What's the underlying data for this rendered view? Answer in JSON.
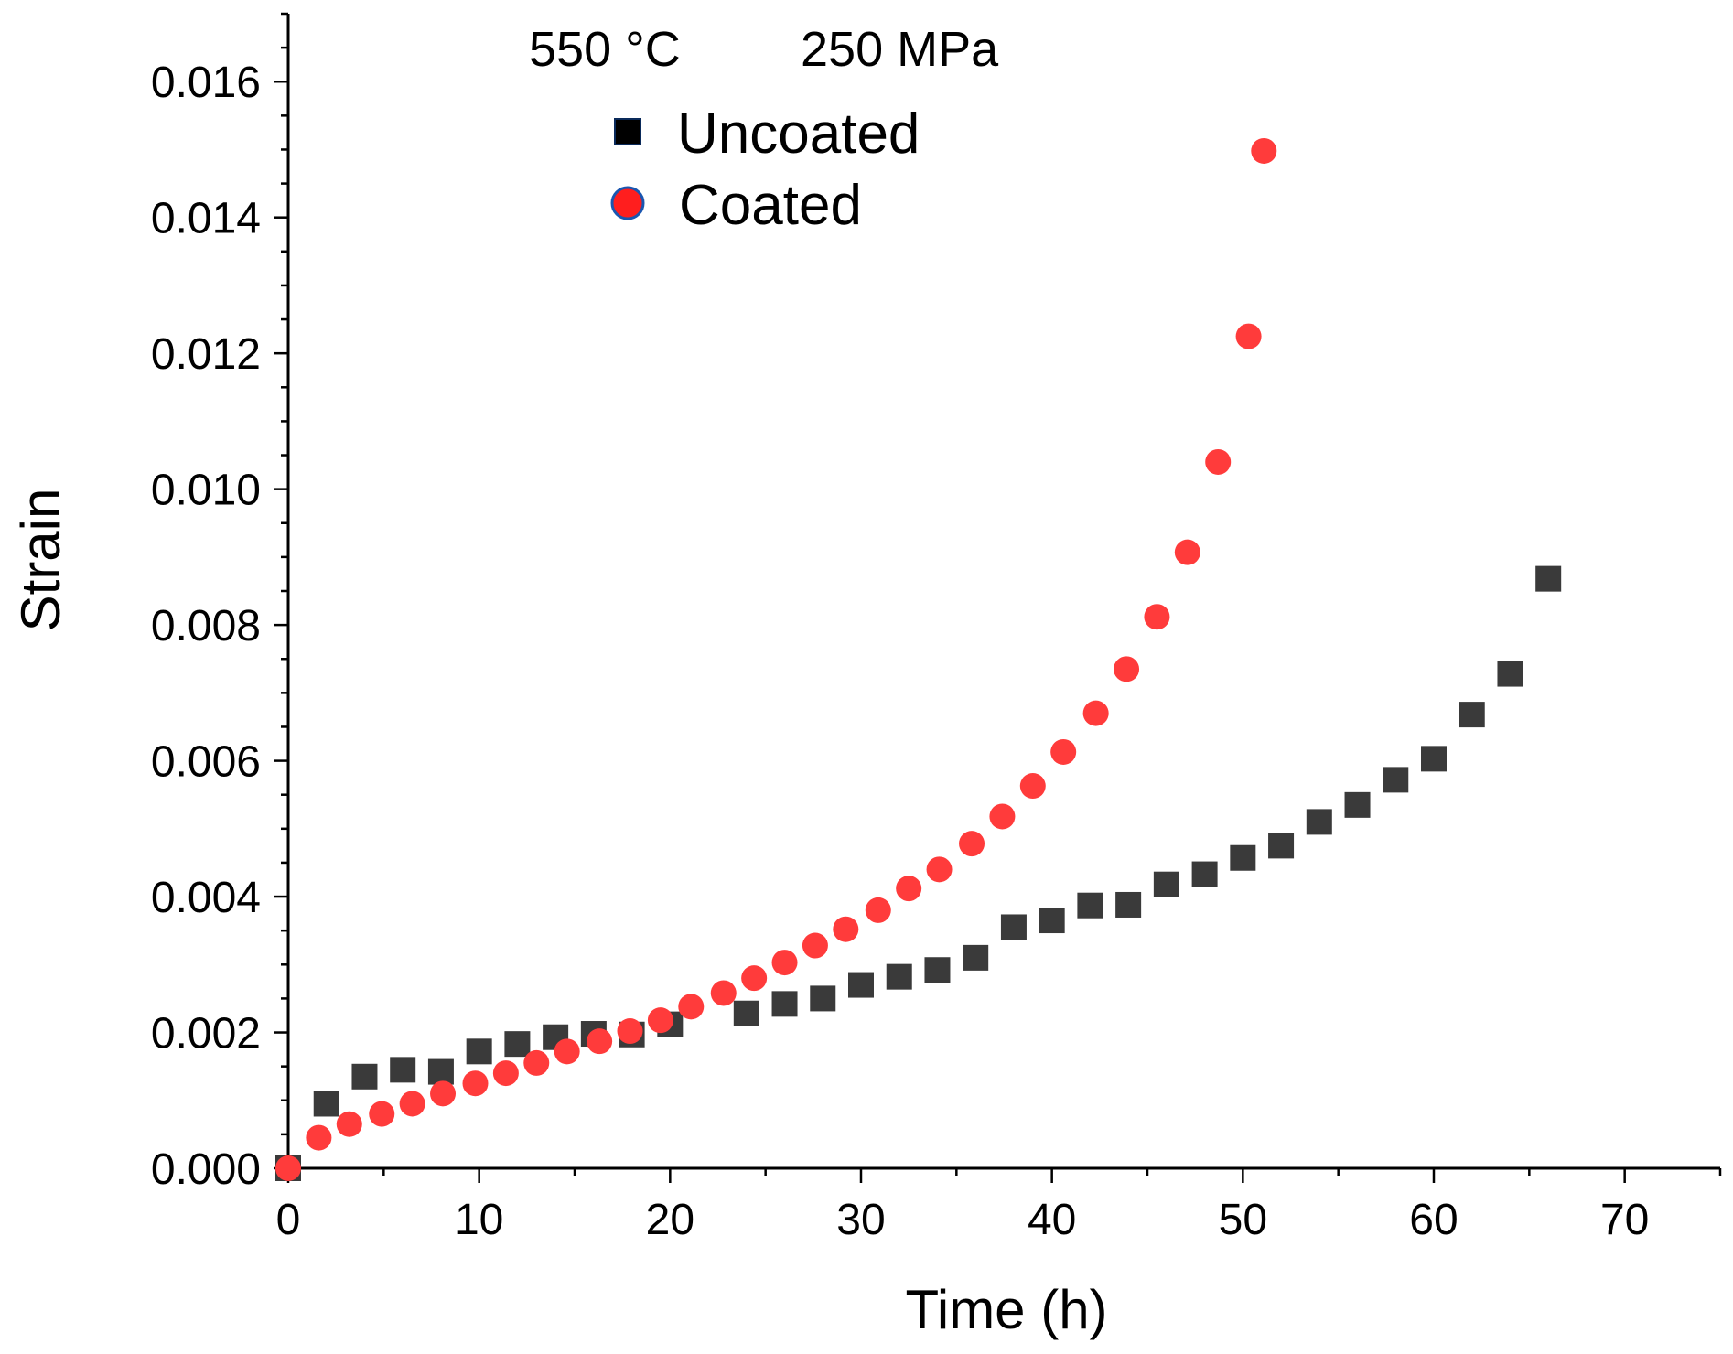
{
  "chart_data": {
    "type": "scatter",
    "annotation_temperature": "550 °C",
    "annotation_stress": "250 MPa",
    "xlabel": "Time (h)",
    "ylabel": "Strain",
    "xlim": [
      0,
      75
    ],
    "ylim": [
      0,
      0.017
    ],
    "x_ticks": [
      0,
      10,
      20,
      30,
      40,
      50,
      60,
      70
    ],
    "x_tick_labels": [
      "0",
      "10",
      "20",
      "30",
      "40",
      "50",
      "60",
      "70"
    ],
    "y_ticks": [
      0,
      0.002,
      0.004,
      0.006,
      0.008,
      0.01,
      0.012,
      0.014,
      0.016
    ],
    "y_tick_labels": [
      "0.000",
      "0.002",
      "0.004",
      "0.006",
      "0.008",
      "0.010",
      "0.012",
      "0.014",
      "0.016"
    ],
    "legend_position": "top-center",
    "series": [
      {
        "name": "Uncoated",
        "marker": "square",
        "color": "#3a3a3a",
        "edge_color": "#0a2a5a",
        "x": [
          0,
          2,
          4,
          6,
          8,
          10,
          12,
          14,
          16,
          18,
          20,
          24,
          26,
          28,
          30,
          32,
          34,
          36,
          38,
          40,
          42,
          44,
          46,
          48,
          50,
          52,
          54,
          56,
          58,
          60,
          62,
          64,
          66
        ],
        "y": [
          0.0,
          0.00095,
          0.00135,
          0.00145,
          0.00142,
          0.00172,
          0.00183,
          0.00193,
          0.00198,
          0.00197,
          0.00212,
          0.00228,
          0.00242,
          0.0025,
          0.0027,
          0.00282,
          0.00292,
          0.0031,
          0.00355,
          0.00365,
          0.00387,
          0.00388,
          0.00418,
          0.00433,
          0.00457,
          0.00475,
          0.0051,
          0.00535,
          0.00572,
          0.00603,
          0.00668,
          0.00728,
          0.00868
        ]
      },
      {
        "name": "Coated",
        "marker": "circle",
        "color": "#ff3b3b",
        "edge_color": "#1a56b0",
        "x": [
          0,
          1.6,
          3.2,
          4.9,
          6.5,
          8.1,
          9.8,
          11.4,
          13.0,
          14.6,
          16.3,
          17.9,
          19.5,
          21.1,
          22.8,
          24.4,
          26.0,
          27.6,
          29.2,
          30.9,
          32.5,
          34.1,
          35.8,
          37.4,
          39.0,
          40.6,
          42.3,
          43.9,
          45.5,
          47.1,
          48.7,
          50.3,
          51.1
        ],
        "y": [
          0.0,
          0.00045,
          0.00065,
          0.0008,
          0.00095,
          0.0011,
          0.00125,
          0.0014,
          0.00155,
          0.00172,
          0.00187,
          0.00202,
          0.00218,
          0.00238,
          0.00258,
          0.0028,
          0.00303,
          0.00328,
          0.00352,
          0.0038,
          0.00412,
          0.0044,
          0.00478,
          0.00518,
          0.00563,
          0.00613,
          0.0067,
          0.00735,
          0.00812,
          0.00907,
          0.0104,
          0.01225,
          0.01498
        ]
      }
    ]
  }
}
